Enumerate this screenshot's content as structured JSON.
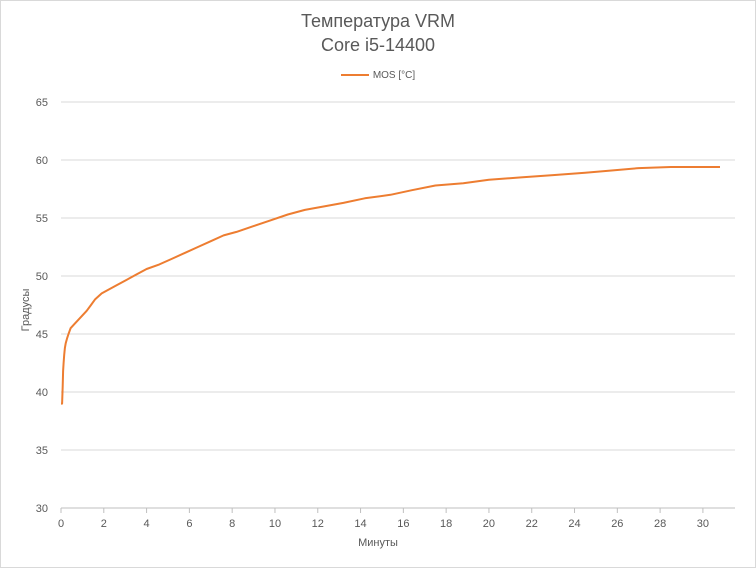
{
  "chart_data": {
    "type": "line",
    "title": "Температура VRM",
    "subtitle": "Core i5-14400",
    "xlabel": "Минуты",
    "ylabel": "Градусы",
    "xlim": [
      0,
      31.5
    ],
    "ylim": [
      30,
      65
    ],
    "x_ticks": [
      0,
      2,
      4,
      6,
      8,
      10,
      12,
      14,
      16,
      18,
      20,
      22,
      24,
      26,
      28,
      30
    ],
    "y_ticks": [
      30,
      35,
      40,
      45,
      50,
      55,
      60,
      65
    ],
    "grid": "horizontal",
    "legend_position": "top",
    "colors": {
      "line": "#ED7D31",
      "grid": "#d9d9d9",
      "text": "#595959"
    },
    "series": [
      {
        "name": "MOS [°C]",
        "x": [
          0,
          0.05,
          0.08,
          0.1,
          0.12,
          0.15,
          0.18,
          0.22,
          0.28,
          0.35,
          0.45,
          0.6,
          0.8,
          1.0,
          1.2,
          1.4,
          1.6,
          1.9,
          2.2,
          2.6,
          3.0,
          3.5,
          4.0,
          4.6,
          5.2,
          5.8,
          6.4,
          7.0,
          7.6,
          8.2,
          9.0,
          9.8,
          10.6,
          11.4,
          12.3,
          13.2,
          14.2,
          15.4,
          16.4,
          17.5,
          18.8,
          20.0,
          21.5,
          23.0,
          24.5,
          25.8,
          27.0,
          28.5,
          30.0,
          30.8
        ],
        "values": [
          39.0,
          39.0,
          40.5,
          41.8,
          42.5,
          43.2,
          43.8,
          44.2,
          44.6,
          45.0,
          45.5,
          45.8,
          46.2,
          46.6,
          47.0,
          47.5,
          48.0,
          48.5,
          48.8,
          49.2,
          49.6,
          50.1,
          50.6,
          51.0,
          51.5,
          52.0,
          52.5,
          53.0,
          53.5,
          53.8,
          54.3,
          54.8,
          55.3,
          55.7,
          56.0,
          56.3,
          56.7,
          57.0,
          57.4,
          57.8,
          58.0,
          58.3,
          58.5,
          58.7,
          58.9,
          59.1,
          59.3,
          59.4,
          59.4,
          59.4
        ]
      }
    ]
  }
}
